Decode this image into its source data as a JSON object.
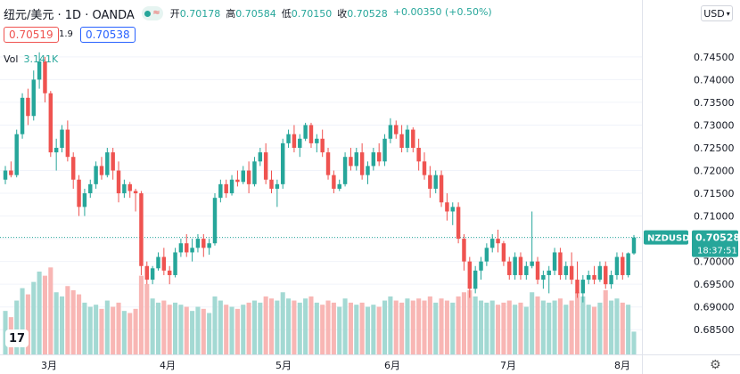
{
  "header": {
    "symbol": "纽元/美元 · 1D · OANDA",
    "ohlc": [
      {
        "k": "开",
        "v": "0.70178"
      },
      {
        "k": "高",
        "v": "0.70584"
      },
      {
        "k": "低",
        "v": "0.70150"
      },
      {
        "k": "收",
        "v": "0.70528"
      }
    ],
    "change": "+0.00350 (+0.50%)",
    "sell_price": "0.70519",
    "spread": "1.9",
    "buy_price": "0.70538",
    "volume_label": "Vol",
    "volume_value": "3.141K",
    "currency": "USD"
  },
  "price_axis": {
    "ticks": [
      "0.74500",
      "0.74000",
      "0.73500",
      "0.73000",
      "0.72500",
      "0.72000",
      "0.71500",
      "0.71000",
      "0.70500",
      "0.70000",
      "0.69500",
      "0.69000",
      "0.68500"
    ],
    "symbol_tag": "NZDUSD",
    "last_price": "0.70528",
    "countdown": "18:37:51"
  },
  "time_axis": {
    "ticks": [
      "3月",
      "4月",
      "5月",
      "6月",
      "7月",
      "8月"
    ]
  },
  "colors": {
    "up": "#26a69a",
    "down": "#ef5350",
    "vol_up": "#a3d9d3",
    "vol_down": "#f8b6b4"
  },
  "chart_data": {
    "type": "candlestick",
    "instrument": "NZDUSD",
    "timeframe": "1D",
    "ylim": [
      0.6825,
      0.7485
    ],
    "current_price": 0.70528,
    "candles": [
      [
        0.718,
        0.721,
        0.717,
        0.72,
        210
      ],
      [
        0.72,
        0.722,
        0.7185,
        0.719,
        180
      ],
      [
        0.719,
        0.729,
        0.7185,
        0.728,
        260
      ],
      [
        0.728,
        0.737,
        0.727,
        0.736,
        320
      ],
      [
        0.736,
        0.738,
        0.73,
        0.732,
        290
      ],
      [
        0.732,
        0.742,
        0.731,
        0.74,
        350
      ],
      [
        0.74,
        0.746,
        0.738,
        0.744,
        400
      ],
      [
        0.744,
        0.745,
        0.735,
        0.737,
        380
      ],
      [
        0.737,
        0.7375,
        0.723,
        0.724,
        420
      ],
      [
        0.724,
        0.727,
        0.72,
        0.725,
        300
      ],
      [
        0.725,
        0.73,
        0.724,
        0.729,
        280
      ],
      [
        0.729,
        0.731,
        0.722,
        0.723,
        330
      ],
      [
        0.723,
        0.724,
        0.716,
        0.718,
        310
      ],
      [
        0.718,
        0.719,
        0.71,
        0.712,
        290
      ],
      [
        0.712,
        0.716,
        0.71,
        0.715,
        250
      ],
      [
        0.715,
        0.718,
        0.714,
        0.717,
        230
      ],
      [
        0.717,
        0.722,
        0.716,
        0.721,
        240
      ],
      [
        0.721,
        0.723,
        0.718,
        0.719,
        220
      ],
      [
        0.719,
        0.725,
        0.7185,
        0.724,
        260
      ],
      [
        0.724,
        0.725,
        0.718,
        0.72,
        230
      ],
      [
        0.72,
        0.722,
        0.713,
        0.715,
        250
      ],
      [
        0.715,
        0.718,
        0.714,
        0.717,
        210
      ],
      [
        0.717,
        0.7175,
        0.714,
        0.7155,
        200
      ],
      [
        0.7155,
        0.716,
        0.711,
        0.715,
        220
      ],
      [
        0.715,
        0.7155,
        0.697,
        0.699,
        380
      ],
      [
        0.699,
        0.7,
        0.695,
        0.696,
        340
      ],
      [
        0.696,
        0.699,
        0.695,
        0.6985,
        270
      ],
      [
        0.6985,
        0.702,
        0.698,
        0.701,
        250
      ],
      [
        0.701,
        0.703,
        0.697,
        0.698,
        260
      ],
      [
        0.698,
        0.699,
        0.695,
        0.697,
        240
      ],
      [
        0.697,
        0.703,
        0.6965,
        0.702,
        250
      ],
      [
        0.702,
        0.705,
        0.701,
        0.704,
        240
      ],
      [
        0.704,
        0.706,
        0.701,
        0.702,
        230
      ],
      [
        0.702,
        0.705,
        0.7,
        0.703,
        210
      ],
      [
        0.703,
        0.706,
        0.702,
        0.705,
        230
      ],
      [
        0.705,
        0.706,
        0.701,
        0.703,
        220
      ],
      [
        0.703,
        0.705,
        0.7015,
        0.704,
        200
      ],
      [
        0.704,
        0.715,
        0.7035,
        0.714,
        280
      ],
      [
        0.714,
        0.718,
        0.713,
        0.717,
        260
      ],
      [
        0.717,
        0.718,
        0.714,
        0.715,
        240
      ],
      [
        0.715,
        0.719,
        0.7145,
        0.718,
        230
      ],
      [
        0.718,
        0.72,
        0.7165,
        0.7175,
        220
      ],
      [
        0.7175,
        0.721,
        0.717,
        0.72,
        240
      ],
      [
        0.72,
        0.722,
        0.715,
        0.717,
        250
      ],
      [
        0.717,
        0.723,
        0.7165,
        0.722,
        260
      ],
      [
        0.722,
        0.725,
        0.721,
        0.724,
        250
      ],
      [
        0.724,
        0.726,
        0.717,
        0.718,
        280
      ],
      [
        0.718,
        0.72,
        0.715,
        0.716,
        270
      ],
      [
        0.716,
        0.718,
        0.712,
        0.717,
        260
      ],
      [
        0.717,
        0.727,
        0.716,
        0.726,
        300
      ],
      [
        0.726,
        0.729,
        0.725,
        0.728,
        270
      ],
      [
        0.728,
        0.73,
        0.724,
        0.725,
        260
      ],
      [
        0.725,
        0.728,
        0.723,
        0.727,
        250
      ],
      [
        0.727,
        0.7305,
        0.7265,
        0.73,
        270
      ],
      [
        0.73,
        0.7305,
        0.725,
        0.726,
        280
      ],
      [
        0.726,
        0.728,
        0.724,
        0.727,
        250
      ],
      [
        0.727,
        0.729,
        0.723,
        0.724,
        240
      ],
      [
        0.724,
        0.725,
        0.718,
        0.719,
        260
      ],
      [
        0.719,
        0.72,
        0.715,
        0.716,
        250
      ],
      [
        0.716,
        0.718,
        0.7155,
        0.717,
        230
      ],
      [
        0.717,
        0.724,
        0.7165,
        0.723,
        270
      ],
      [
        0.723,
        0.725,
        0.72,
        0.721,
        250
      ],
      [
        0.721,
        0.725,
        0.72,
        0.724,
        240
      ],
      [
        0.724,
        0.726,
        0.718,
        0.719,
        250
      ],
      [
        0.719,
        0.722,
        0.717,
        0.721,
        230
      ],
      [
        0.721,
        0.725,
        0.72,
        0.724,
        240
      ],
      [
        0.724,
        0.726,
        0.721,
        0.722,
        230
      ],
      [
        0.722,
        0.728,
        0.721,
        0.727,
        260
      ],
      [
        0.727,
        0.7315,
        0.726,
        0.73,
        280
      ],
      [
        0.73,
        0.731,
        0.727,
        0.728,
        260
      ],
      [
        0.728,
        0.73,
        0.724,
        0.725,
        250
      ],
      [
        0.725,
        0.73,
        0.724,
        0.729,
        270
      ],
      [
        0.729,
        0.7295,
        0.724,
        0.725,
        260
      ],
      [
        0.725,
        0.727,
        0.72,
        0.722,
        270
      ],
      [
        0.722,
        0.724,
        0.718,
        0.719,
        260
      ],
      [
        0.719,
        0.721,
        0.714,
        0.716,
        280
      ],
      [
        0.716,
        0.72,
        0.715,
        0.719,
        250
      ],
      [
        0.719,
        0.72,
        0.712,
        0.713,
        270
      ],
      [
        0.713,
        0.715,
        0.709,
        0.711,
        260
      ],
      [
        0.711,
        0.713,
        0.708,
        0.712,
        250
      ],
      [
        0.712,
        0.713,
        0.704,
        0.705,
        280
      ],
      [
        0.705,
        0.706,
        0.698,
        0.7,
        300
      ],
      [
        0.7,
        0.701,
        0.692,
        0.694,
        310
      ],
      [
        0.694,
        0.699,
        0.693,
        0.698,
        280
      ],
      [
        0.698,
        0.701,
        0.696,
        0.7,
        260
      ],
      [
        0.7,
        0.704,
        0.699,
        0.703,
        250
      ],
      [
        0.703,
        0.706,
        0.702,
        0.705,
        260
      ],
      [
        0.705,
        0.707,
        0.702,
        0.704,
        240
      ],
      [
        0.704,
        0.7045,
        0.699,
        0.7,
        250
      ],
      [
        0.7,
        0.701,
        0.696,
        0.697,
        260
      ],
      [
        0.697,
        0.702,
        0.696,
        0.701,
        240
      ],
      [
        0.701,
        0.702,
        0.696,
        0.697,
        250
      ],
      [
        0.697,
        0.7,
        0.696,
        0.699,
        230
      ],
      [
        0.699,
        0.711,
        0.6985,
        0.7,
        300
      ],
      [
        0.7,
        0.701,
        0.695,
        0.696,
        280
      ],
      [
        0.696,
        0.698,
        0.694,
        0.697,
        260
      ],
      [
        0.697,
        0.699,
        0.693,
        0.698,
        250
      ],
      [
        0.698,
        0.703,
        0.697,
        0.702,
        260
      ],
      [
        0.702,
        0.703,
        0.696,
        0.697,
        270
      ],
      [
        0.697,
        0.7,
        0.696,
        0.699,
        240
      ],
      [
        0.699,
        0.702,
        0.695,
        0.696,
        260
      ],
      [
        0.696,
        0.7,
        0.692,
        0.693,
        300
      ],
      [
        0.693,
        0.697,
        0.691,
        0.696,
        280
      ],
      [
        0.696,
        0.698,
        0.695,
        0.697,
        240
      ],
      [
        0.697,
        0.699,
        0.695,
        0.696,
        230
      ],
      [
        0.696,
        0.7,
        0.6955,
        0.699,
        250
      ],
      [
        0.699,
        0.7,
        0.694,
        0.695,
        310
      ],
      [
        0.695,
        0.698,
        0.694,
        0.697,
        260
      ],
      [
        0.697,
        0.702,
        0.696,
        0.701,
        270
      ],
      [
        0.701,
        0.702,
        0.696,
        0.697,
        250
      ],
      [
        0.697,
        0.702,
        0.6965,
        0.7018,
        240
      ],
      [
        0.70178,
        0.70584,
        0.7015,
        0.70528,
        110
      ]
    ]
  }
}
